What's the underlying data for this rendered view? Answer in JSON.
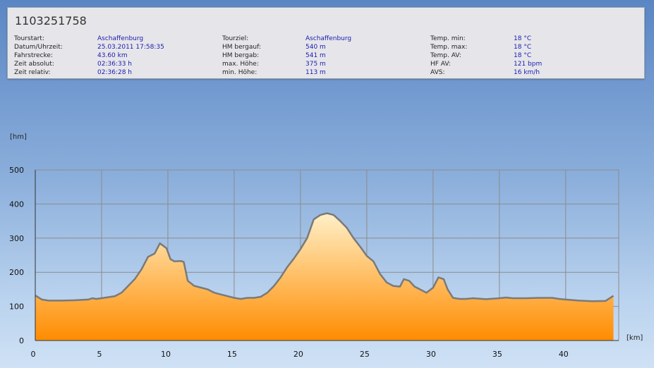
{
  "tour": {
    "title": "1103251758",
    "columns": [
      [
        {
          "label": "Tourstart:",
          "value": "Aschaffenburg"
        },
        {
          "label": "Datum/Uhrzeit:",
          "value": "25.03.2011 17:58:35"
        },
        {
          "label": "Fahrstrecke:",
          "value": "43.60 km"
        },
        {
          "label": "Zeit absolut:",
          "value": "02:36:33 h"
        },
        {
          "label": "Zeit relativ:",
          "value": "02:36:28 h"
        }
      ],
      [
        {
          "label": "Tourziel:",
          "value": "Aschaffenburg"
        },
        {
          "label": "HM bergauf:",
          "value": "540 m"
        },
        {
          "label": "HM bergab:",
          "value": "541 m"
        },
        {
          "label": "max. Höhe:",
          "value": "375 m"
        },
        {
          "label": "min. Höhe:",
          "value": "113 m"
        }
      ],
      [
        {
          "label": "Temp. min:",
          "value": "18 °C"
        },
        {
          "label": "Temp. max:",
          "value": "18 °C"
        },
        {
          "label": "Temp. AV:",
          "value": "18 °C"
        },
        {
          "label": "HF AV:",
          "value": "121 bpm"
        },
        {
          "label": "AVS:",
          "value": "16 km/h"
        }
      ]
    ]
  },
  "chart_data": {
    "type": "area",
    "ylabel": "[hm]",
    "xlabel": "[km]",
    "xlim": [
      0,
      44
    ],
    "ylim": [
      0,
      500
    ],
    "xticks": [
      0,
      5,
      10,
      15,
      20,
      25,
      30,
      35,
      40
    ],
    "yticks": [
      0,
      100,
      200,
      300,
      400,
      500
    ],
    "grid": true,
    "colors": {
      "fill_top": "#fff0c8",
      "fill_bottom": "#ff8c00",
      "line": "#7a7a7a",
      "grid": "#8c8c8c"
    },
    "x": [
      0,
      0.5,
      1,
      2,
      3,
      4,
      4.3,
      4.6,
      5,
      6,
      6.5,
      7,
      7.5,
      8,
      8.5,
      9,
      9.4,
      9.9,
      10.2,
      10.5,
      11,
      11.2,
      11.5,
      12,
      12.5,
      13,
      13.5,
      14,
      14.5,
      15,
      15.5,
      16,
      16.5,
      17,
      17.5,
      18,
      18.5,
      19,
      19.5,
      20,
      20.5,
      21,
      21.5,
      22,
      22.5,
      23,
      23.5,
      24,
      24.5,
      25,
      25.5,
      26,
      26.5,
      27,
      27.5,
      27.8,
      28.2,
      28.6,
      29,
      29.5,
      30,
      30.4,
      30.8,
      31.1,
      31.5,
      32,
      32.5,
      33,
      34,
      35,
      35.5,
      36,
      37,
      38,
      39,
      39.5,
      40,
      41,
      42,
      43,
      43.6
    ],
    "y": [
      132,
      120,
      117,
      117,
      118,
      120,
      124,
      122,
      124,
      130,
      140,
      160,
      180,
      208,
      245,
      255,
      285,
      270,
      238,
      232,
      233,
      230,
      175,
      160,
      155,
      150,
      140,
      135,
      130,
      125,
      122,
      125,
      125,
      128,
      140,
      160,
      185,
      215,
      240,
      268,
      300,
      355,
      368,
      373,
      368,
      350,
      330,
      300,
      275,
      248,
      232,
      195,
      170,
      160,
      158,
      180,
      175,
      158,
      150,
      140,
      155,
      185,
      180,
      150,
      125,
      122,
      122,
      124,
      121,
      124,
      126,
      124,
      124,
      125,
      125,
      122,
      120,
      117,
      115,
      116,
      131
    ]
  }
}
